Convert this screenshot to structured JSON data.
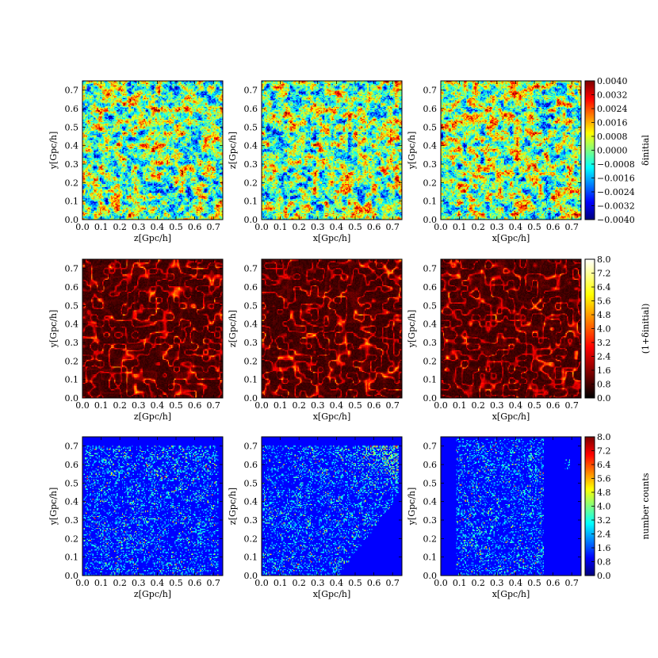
{
  "chart_data": {
    "type": "heatmap",
    "ticks": {
      "axis": [
        "0.0",
        "0.1",
        "0.2",
        "0.3",
        "0.4",
        "0.5",
        "0.6",
        "0.7"
      ],
      "axis_range": [
        0.0,
        0.75
      ]
    },
    "rows": [
      {
        "name": "delta_initial",
        "colormap": "jet",
        "panels": [
          {
            "xlabel": "z[Gpc/h]",
            "ylabel": "y[Gpc/h]"
          },
          {
            "xlabel": "x[Gpc/h]",
            "ylabel": "z[Gpc/h]"
          },
          {
            "xlabel": "x[Gpc/h]",
            "ylabel": "y[Gpc/h]"
          }
        ],
        "colorbar": {
          "label": "δinitial",
          "range": [
            -0.004,
            0.004
          ],
          "ticks": [
            "0.0040",
            "0.0032",
            "0.0024",
            "0.0016",
            "0.0008",
            "0.0000",
            "−0.0008",
            "−0.0016",
            "−0.0024",
            "−0.0032",
            "−0.0040"
          ]
        }
      },
      {
        "name": "one_plus_delta",
        "colormap": "hot",
        "panels": [
          {
            "xlabel": "z[Gpc/h]",
            "ylabel": "y[Gpc/h]"
          },
          {
            "xlabel": "x[Gpc/h]",
            "ylabel": "z[Gpc/h]"
          },
          {
            "xlabel": "x[Gpc/h]",
            "ylabel": "y[Gpc/h]"
          }
        ],
        "colorbar": {
          "label": "(1+δinitial)",
          "range": [
            0.0,
            8.0
          ],
          "ticks": [
            "8.0",
            "7.2",
            "6.4",
            "5.6",
            "4.8",
            "4.0",
            "3.2",
            "2.4",
            "1.6",
            "0.8",
            "0.0"
          ]
        }
      },
      {
        "name": "number_counts",
        "colormap": "jet",
        "panels": [
          {
            "xlabel": "z[Gpc/h]",
            "ylabel": "y[Gpc/h]"
          },
          {
            "xlabel": "x[Gpc/h]",
            "ylabel": "z[Gpc/h]"
          },
          {
            "xlabel": "x[Gpc/h]",
            "ylabel": "y[Gpc/h]"
          }
        ],
        "colorbar": {
          "label": "number counts",
          "range": [
            0.0,
            8.0
          ],
          "ticks": [
            "8.0",
            "7.2",
            "6.4",
            "5.6",
            "4.8",
            "4.0",
            "3.2",
            "2.4",
            "1.6",
            "0.8",
            "0.0"
          ]
        }
      }
    ]
  }
}
